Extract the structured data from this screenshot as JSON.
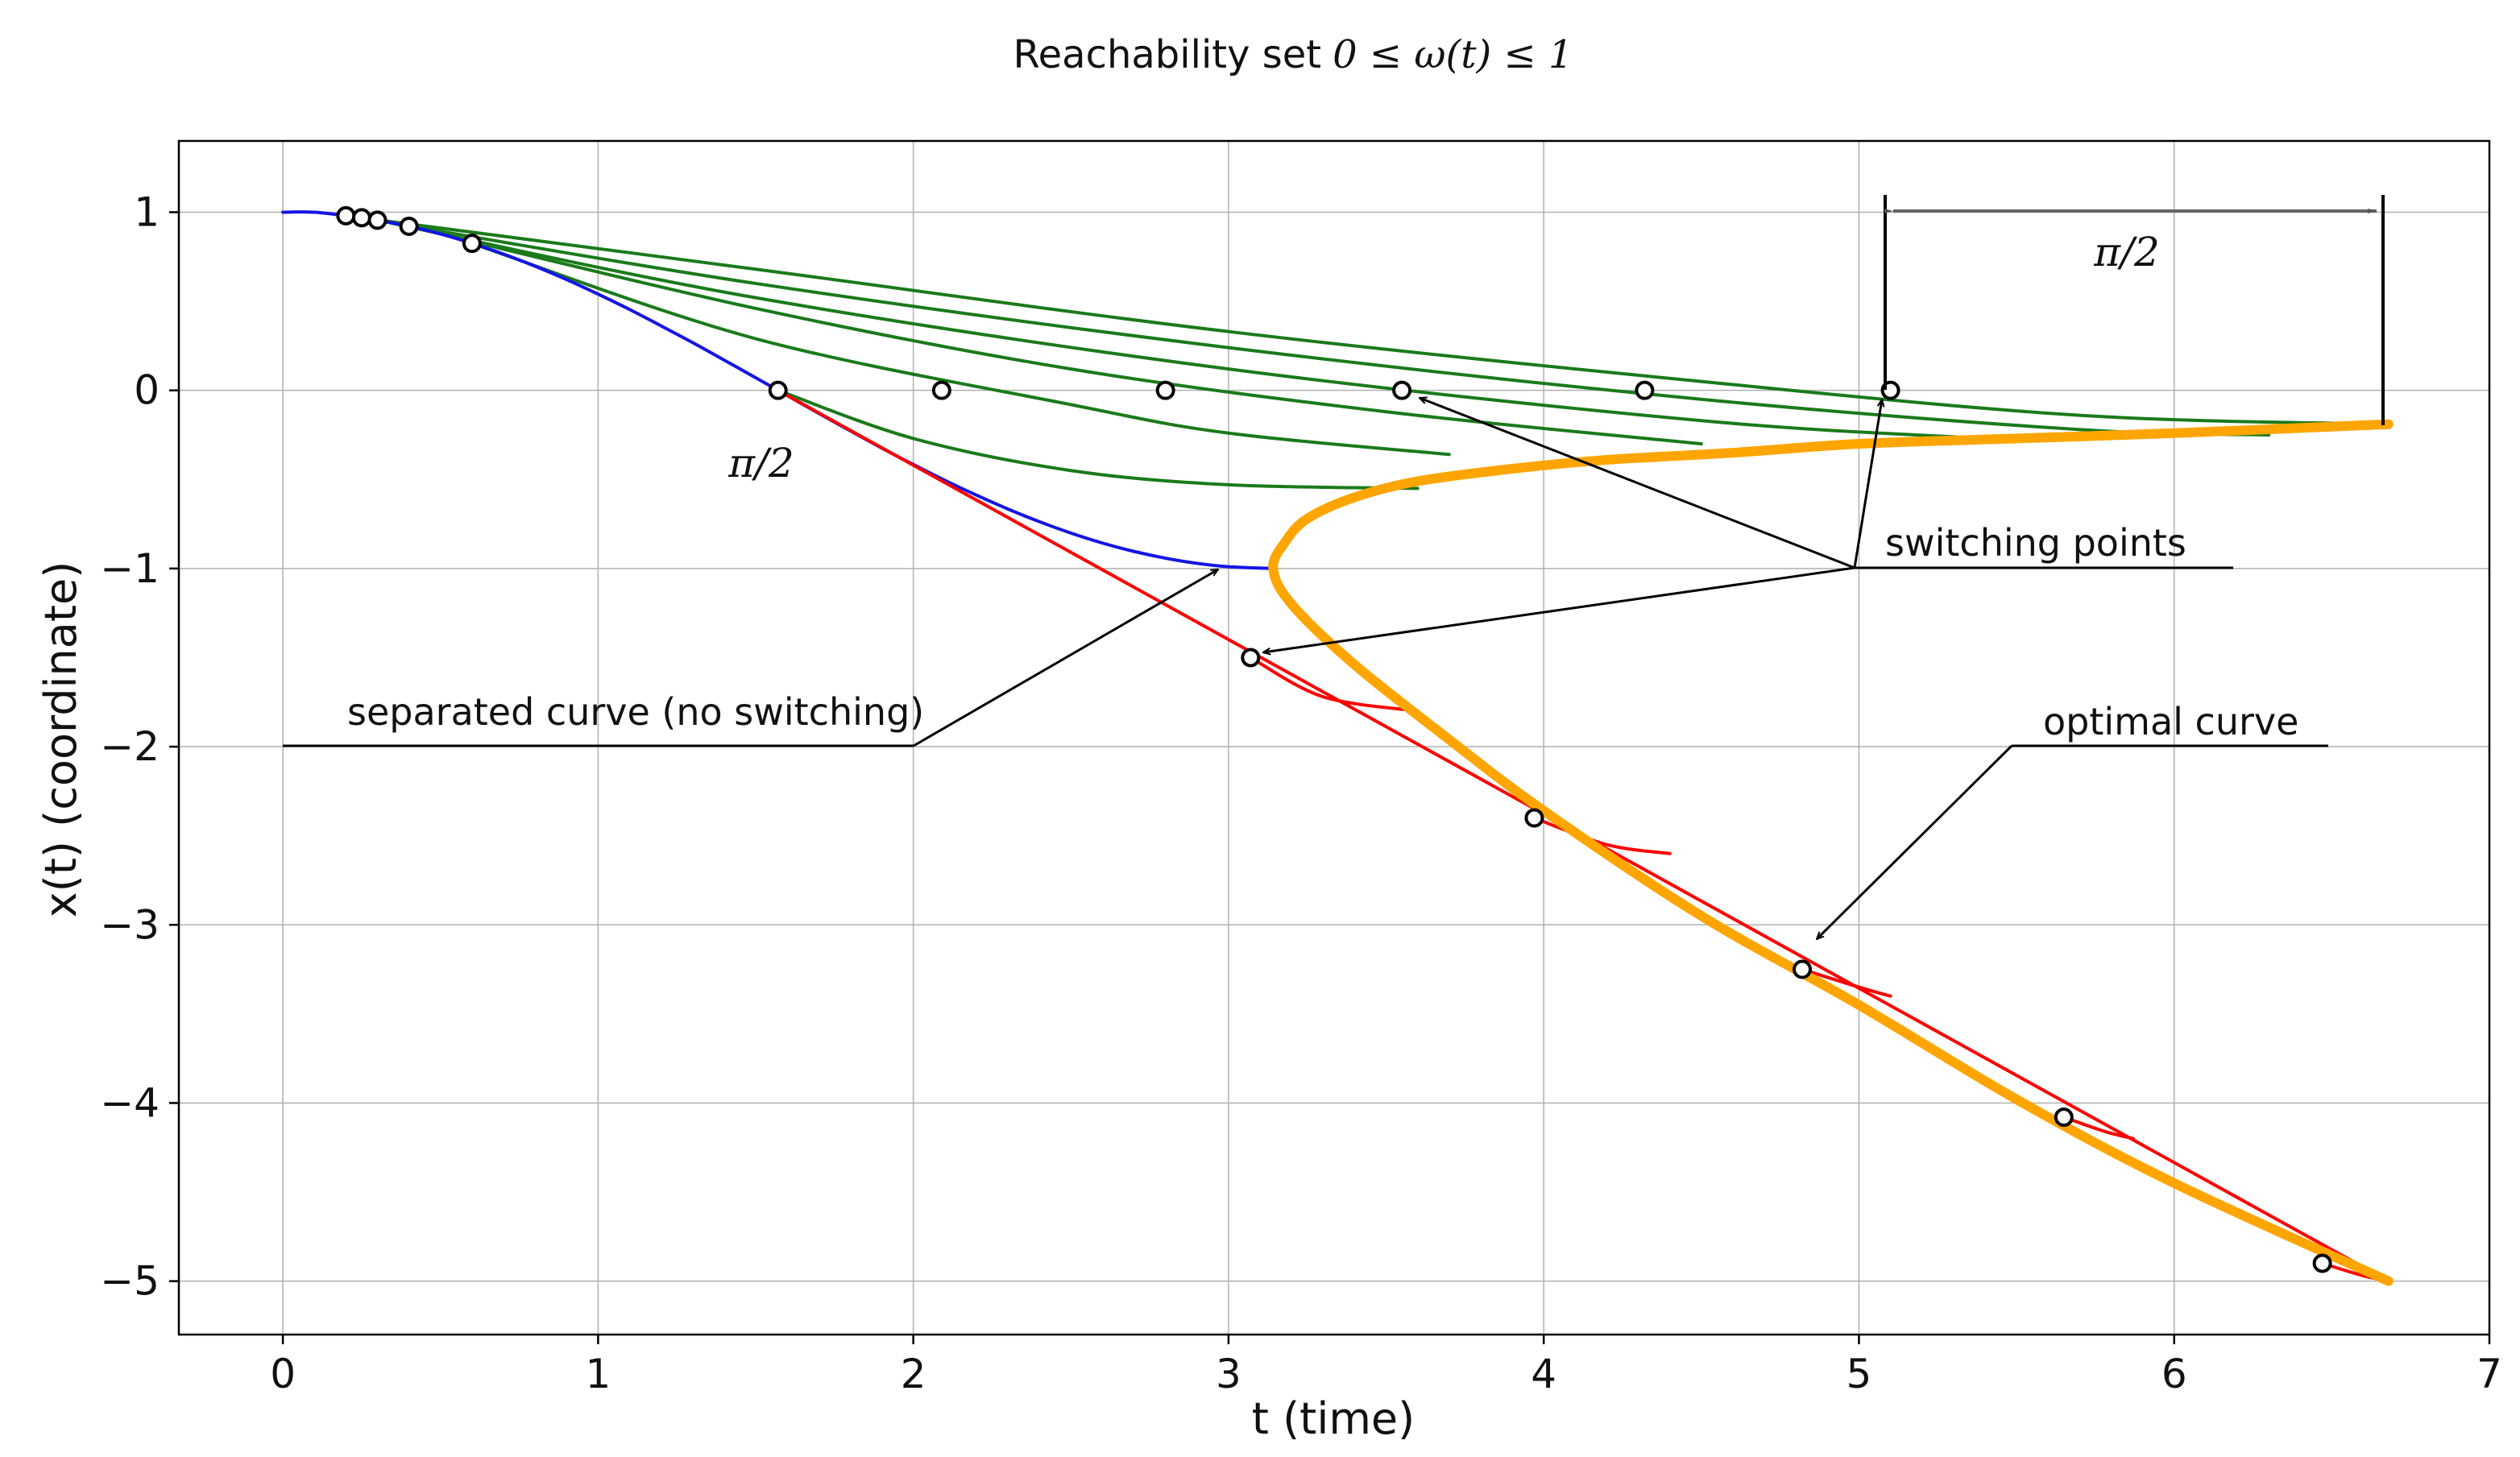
{
  "chart_data": {
    "type": "line",
    "title": "Reachability set",
    "title_math": "0 ≤ ω(t) ≤ 1",
    "xlabel": "t (time)",
    "ylabel": "x(t) (coordinate)",
    "xlim": [
      -0.33,
      7.0
    ],
    "ylim": [
      -5.3,
      1.4
    ],
    "xticks": [
      0,
      1,
      2,
      3,
      4,
      5,
      6,
      7
    ],
    "yticks": [
      1,
      0,
      -1,
      -2,
      -3,
      -4,
      -5
    ],
    "ytick_labels": [
      "1",
      "0",
      "−1",
      "−2",
      "−3",
      "−4",
      "−5"
    ],
    "grid": true,
    "legend": "none",
    "colors": {
      "separated": "#1414e6",
      "switching": "#1a7a1a",
      "lower": "#ff0000",
      "optimal": "#ffa500",
      "annotation": "#000000",
      "dimension": "#666666"
    },
    "series": [
      {
        "role": "separated",
        "x": [
          0,
          0.1,
          0.2,
          0.3,
          0.4,
          0.5,
          0.6,
          0.7,
          0.8,
          0.9,
          1.0,
          1.1,
          1.2,
          1.3,
          1.4,
          1.5,
          1.5708,
          1.7,
          1.8,
          1.9,
          2.0,
          2.1,
          2.2,
          2.3,
          2.4,
          2.5,
          2.6,
          2.7,
          2.8,
          2.9,
          3.0,
          3.1416
        ],
        "y": [
          1.0,
          1.0,
          0.98,
          0.955,
          0.921,
          0.878,
          0.825,
          0.765,
          0.697,
          0.622,
          0.54,
          0.454,
          0.362,
          0.268,
          0.17,
          0.071,
          0.0,
          -0.129,
          -0.227,
          -0.324,
          -0.416,
          -0.505,
          -0.588,
          -0.666,
          -0.737,
          -0.801,
          -0.857,
          -0.904,
          -0.942,
          -0.971,
          -0.99,
          -1.0
        ]
      },
      {
        "role": "switching",
        "x": [
          0.2,
          1.5,
          3.0,
          4.5,
          5.7,
          6.68
        ],
        "y": [
          0.98,
          0.68,
          0.33,
          0.05,
          -0.14,
          -0.19
        ]
      },
      {
        "role": "switching",
        "x": [
          0.25,
          1.5,
          3.0,
          4.5,
          5.7,
          6.3
        ],
        "y": [
          0.969,
          0.6,
          0.24,
          -0.05,
          -0.22,
          -0.25
        ]
      },
      {
        "role": "switching",
        "x": [
          0.3,
          1.5,
          3.0,
          4.5,
          5.4
        ],
        "y": [
          0.955,
          0.52,
          0.12,
          -0.17,
          -0.27
        ]
      },
      {
        "role": "switching",
        "x": [
          0.4,
          1.5,
          2.5,
          3.5,
          4.5
        ],
        "y": [
          0.921,
          0.46,
          0.12,
          -0.12,
          -0.3
        ]
      },
      {
        "role": "switching",
        "x": [
          0.6,
          1.5,
          2.5,
          3.0,
          3.7
        ],
        "y": [
          0.825,
          0.29,
          -0.08,
          -0.24,
          -0.36
        ]
      },
      {
        "role": "switching",
        "x": [
          1.5708,
          2.0,
          2.5,
          3.0,
          3.6
        ],
        "y": [
          0.0,
          -0.27,
          -0.45,
          -0.53,
          -0.55
        ]
      },
      {
        "role": "lower",
        "x": [
          1.5708,
          6.68
        ],
        "y": [
          0.0,
          -5.0
        ]
      },
      {
        "role": "lower",
        "x": [
          3.07,
          3.3,
          3.6
        ],
        "y": [
          -1.5,
          -1.72,
          -1.8
        ]
      },
      {
        "role": "lower",
        "x": [
          3.97,
          4.2,
          4.4
        ],
        "y": [
          -2.4,
          -2.55,
          -2.6
        ]
      },
      {
        "role": "lower",
        "x": [
          4.82,
          5.0,
          5.1
        ],
        "y": [
          -3.25,
          -3.35,
          -3.4
        ]
      },
      {
        "role": "lower",
        "x": [
          5.65,
          5.78,
          5.87
        ],
        "y": [
          -4.08,
          -4.16,
          -4.2
        ]
      },
      {
        "role": "lower",
        "x": [
          6.47,
          6.6,
          6.68
        ],
        "y": [
          -4.9,
          -4.97,
          -5.0
        ]
      },
      {
        "role": "optimal",
        "x": [
          6.68,
          6.0,
          5.5,
          5.0,
          4.6,
          4.2,
          3.9,
          3.6,
          3.4,
          3.25,
          3.18,
          3.1416,
          3.2,
          3.4,
          3.7,
          4.0,
          4.5,
          5.0,
          5.5,
          6.0,
          6.68
        ],
        "y": [
          -0.19,
          -0.24,
          -0.27,
          -0.3,
          -0.35,
          -0.39,
          -0.44,
          -0.51,
          -0.6,
          -0.72,
          -0.85,
          -1.0,
          -1.2,
          -1.54,
          -1.96,
          -2.36,
          -2.95,
          -3.45,
          -3.98,
          -4.45,
          -5.0
        ]
      }
    ],
    "markers": {
      "x": [
        0.2,
        0.25,
        0.3,
        0.4,
        0.6,
        1.5708,
        2.09,
        2.8,
        3.55,
        4.32,
        5.1,
        3.07,
        3.97,
        4.82,
        5.65,
        6.47
      ],
      "y": [
        0.98,
        0.969,
        0.955,
        0.921,
        0.825,
        0.0,
        0.0,
        0.0,
        0.0,
        0.0,
        0.0,
        -1.5,
        -2.4,
        -3.25,
        -4.08,
        -4.9
      ]
    },
    "annotations": {
      "separated_label": "separated curve (no switching)",
      "switching_label": "switching points",
      "optimal_label": "optimal curve",
      "pi_half_dimension": "π/2",
      "pi_half_left": "π/2"
    }
  }
}
